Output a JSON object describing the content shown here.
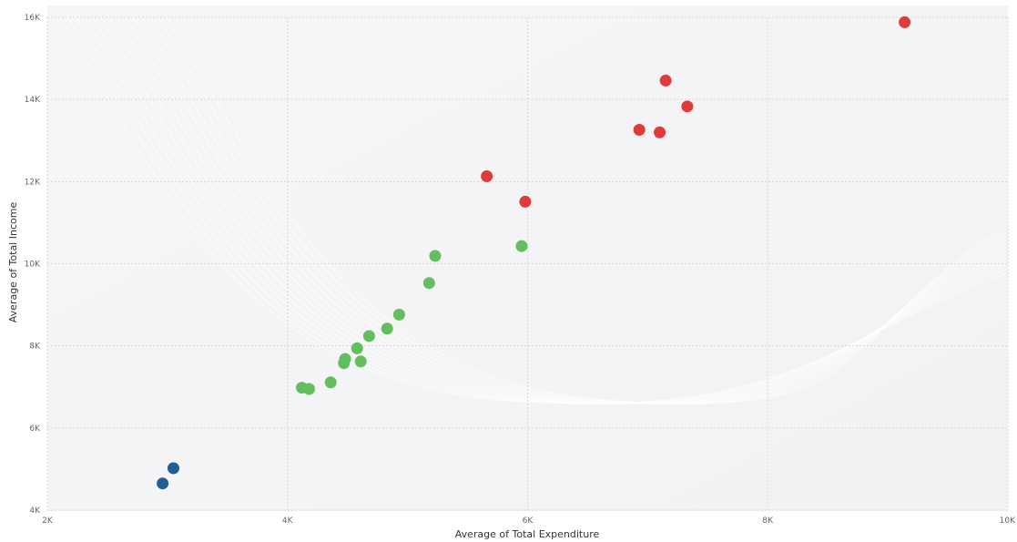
{
  "chart_data": {
    "type": "scatter",
    "title": "",
    "xlabel": "Average of Total Expenditure",
    "ylabel": "Average of Total Income",
    "xlim": [
      2000,
      10000
    ],
    "ylim": [
      4000,
      16000
    ],
    "x_ticks": [
      {
        "value": 2000,
        "label": "2K"
      },
      {
        "value": 4000,
        "label": "4K"
      },
      {
        "value": 6000,
        "label": "6K"
      },
      {
        "value": 8000,
        "label": "8K"
      },
      {
        "value": 10000,
        "label": "10K"
      }
    ],
    "y_ticks": [
      {
        "value": 4000,
        "label": "4K"
      },
      {
        "value": 6000,
        "label": "6K"
      },
      {
        "value": 8000,
        "label": "8K"
      },
      {
        "value": 10000,
        "label": "10K"
      },
      {
        "value": 12000,
        "label": "12K"
      },
      {
        "value": 14000,
        "label": "14K"
      },
      {
        "value": 16000,
        "label": "16K"
      }
    ],
    "grid": true,
    "series": [
      {
        "color": "#1f5f96",
        "points": [
          {
            "x": 2960,
            "y": 4650
          },
          {
            "x": 3050,
            "y": 5020
          }
        ]
      },
      {
        "color": "#63be60",
        "points": [
          {
            "x": 4120,
            "y": 6980
          },
          {
            "x": 4180,
            "y": 6950
          },
          {
            "x": 4360,
            "y": 7110
          },
          {
            "x": 4470,
            "y": 7580
          },
          {
            "x": 4480,
            "y": 7680
          },
          {
            "x": 4580,
            "y": 7940
          },
          {
            "x": 4610,
            "y": 7620
          },
          {
            "x": 4680,
            "y": 8240
          },
          {
            "x": 4830,
            "y": 8420
          },
          {
            "x": 4930,
            "y": 8760
          },
          {
            "x": 5180,
            "y": 9530
          },
          {
            "x": 5230,
            "y": 10190
          },
          {
            "x": 5950,
            "y": 10430
          }
        ]
      },
      {
        "color": "#e03b3b",
        "points": [
          {
            "x": 5660,
            "y": 12130
          },
          {
            "x": 5980,
            "y": 11510
          },
          {
            "x": 6930,
            "y": 13260
          },
          {
            "x": 7100,
            "y": 13200
          },
          {
            "x": 7150,
            "y": 14460
          },
          {
            "x": 7330,
            "y": 13830
          },
          {
            "x": 9140,
            "y": 15880
          }
        ]
      }
    ]
  }
}
